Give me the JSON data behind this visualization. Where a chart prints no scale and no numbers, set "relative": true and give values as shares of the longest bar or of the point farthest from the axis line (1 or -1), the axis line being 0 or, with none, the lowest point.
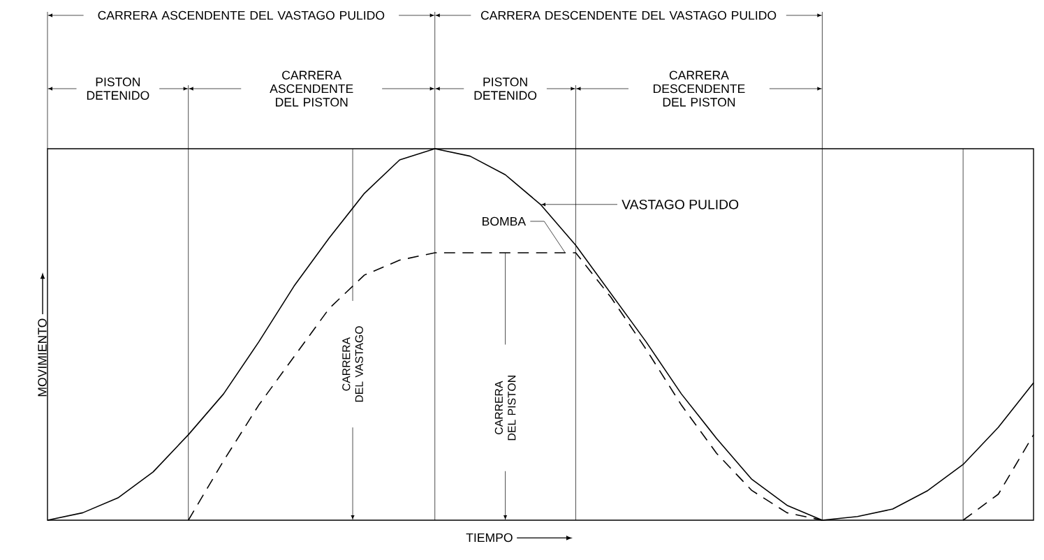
{
  "chart_data": {
    "type": "line",
    "relative": true,
    "grid": "x",
    "xlabel": "TIEMPO",
    "ylabel": "MOVIMIENTO",
    "categories": [
      null,
      null,
      null,
      null,
      null,
      null,
      null,
      null,
      null,
      null,
      null,
      null,
      null,
      null,
      null,
      null,
      null,
      null,
      null,
      null,
      null,
      null,
      null,
      null,
      null,
      null,
      null,
      null,
      null
    ],
    "series": [
      {
        "name": "VASTAGO PULIDO",
        "color": "#000000",
        "line_style": "solid",
        "values": [
          0,
          0.02,
          0.06,
          0.13,
          0.23,
          0.34,
          0.48,
          0.63,
          0.76,
          0.88,
          0.97,
          1,
          0.98,
          0.93,
          0.85,
          0.74,
          0.61,
          0.48,
          0.34,
          0.22,
          0.11,
          0.04,
          0,
          0.01,
          0.03,
          0.08,
          0.15,
          0.25,
          0.37
        ]
      },
      {
        "name": "BOMBA",
        "color": "#000000",
        "line_style": "dashed",
        "values": [
          null,
          null,
          null,
          null,
          0,
          0.16,
          0.31,
          0.44,
          0.57,
          0.66,
          0.7,
          0.72,
          0.72,
          0.72,
          0.72,
          0.72,
          0.6,
          0.46,
          0.31,
          0.18,
          0.08,
          0.02,
          0,
          null,
          null,
          null,
          0,
          0.07,
          0.23
        ]
      }
    ],
    "annotations": [
      "CARRERA ASCENDENTE DEL VASTAGO PULIDO",
      "CARRERA DESCENDENTE DEL VASTAGO PULIDO",
      "PISTON DETENIDO",
      "CARRERA ASCENDENTE DEL PISTON",
      "PISTON DETENIDO",
      "CARRERA DESCENDENTE DEL PISTON",
      "CARRERA DEL VASTAGO",
      "CARRERA DEL PISTON"
    ]
  }
}
